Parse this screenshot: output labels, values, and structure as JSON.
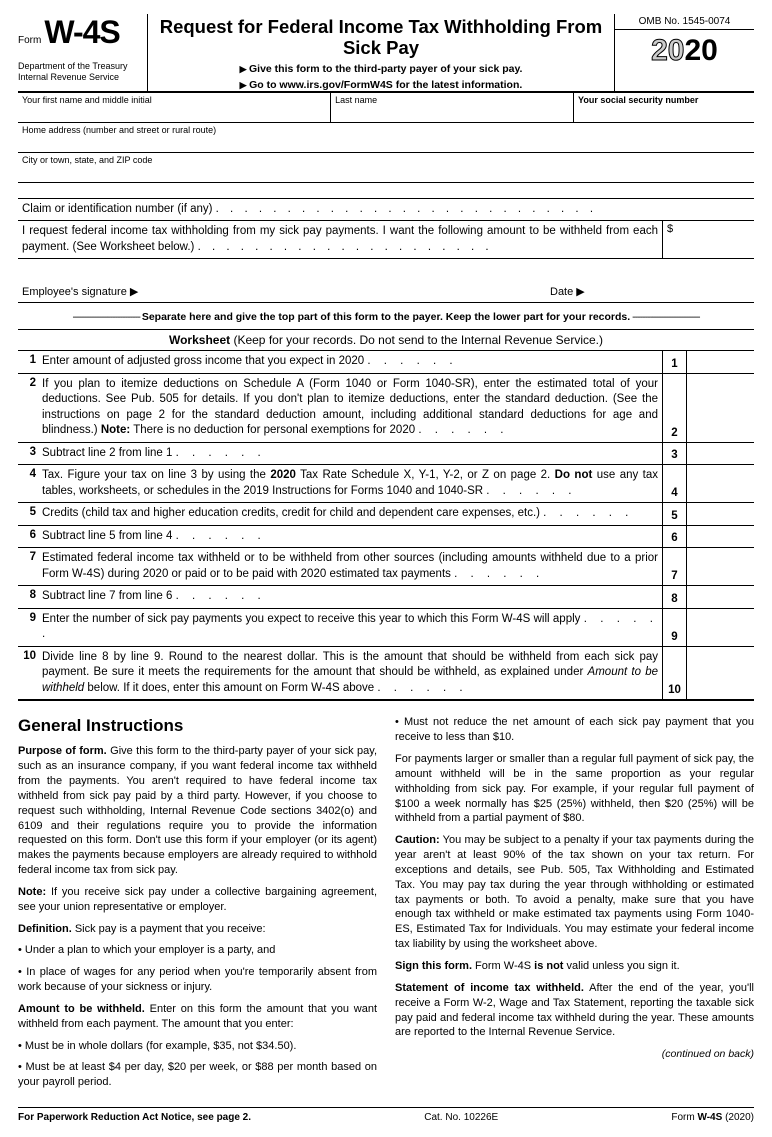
{
  "header": {
    "form_prefix": "Form",
    "form_code": "W-4S",
    "dept1": "Department of the Treasury",
    "dept2": "Internal Revenue Service",
    "title": "Request for Federal Income Tax Withholding From Sick Pay",
    "sub1": "Give this form to the third-party payer of your sick pay.",
    "sub2": "Go to www.irs.gov/FormW4S for the latest information.",
    "omb": "OMB No. 1545-0074",
    "year_grey": "20",
    "year_bold": "20"
  },
  "fields": {
    "first_name": "Your first name and middle initial",
    "last_name": "Last name",
    "ssn": "Your social security number",
    "address": "Home address (number and street or rural route)",
    "city": "City or town, state, and ZIP code",
    "claim": "Claim or identification number (if any)",
    "request": "I request federal income tax withholding from my sick pay payments. I want the following amount to be withheld from each payment. (See Worksheet below.)",
    "dollar": "$",
    "sig": "Employee's signature ▶",
    "date": "Date ▶"
  },
  "sep": "Separate here and give the top part of this form to the payer. Keep the lower part for your records.",
  "wks_title_b": "Worksheet",
  "wks_title_r": " (Keep for your records. Do not send to the Internal Revenue Service.)",
  "lines": [
    {
      "n": "1",
      "t": "Enter amount of adjusted gross income that you expect in 2020"
    },
    {
      "n": "2",
      "t": "If you plan to itemize deductions on Schedule A (Form 1040 or Form 1040-SR), enter the estimated total of your deductions. See Pub. 505 for details. If you don't plan to itemize deductions, enter the standard deduction. (See the instructions on page 2 for the standard deduction amount, including additional standard deductions for age and blindness.) Note: There is no deduction for personal exemptions for 2020"
    },
    {
      "n": "3",
      "t": "Subtract line 2 from line 1"
    },
    {
      "n": "4",
      "t": "Tax. Figure your tax on line 3 by using the 2020 Tax Rate Schedule X, Y-1, Y-2, or Z on page 2. Do not use any tax tables, worksheets, or schedules in the 2019 Instructions for Forms 1040 and 1040-SR"
    },
    {
      "n": "5",
      "t": "Credits (child tax and higher education credits, credit for child and dependent care expenses, etc.)"
    },
    {
      "n": "6",
      "t": "Subtract line 5 from line 4"
    },
    {
      "n": "7",
      "t": "Estimated federal income tax withheld or to be withheld from other sources (including amounts withheld due to a prior Form W-4S) during 2020 or paid or to be paid with 2020 estimated tax payments"
    },
    {
      "n": "8",
      "t": "Subtract line 7 from line 6"
    },
    {
      "n": "9",
      "t": "Enter the number of sick pay payments you expect to receive this year to which this Form W-4S will apply"
    },
    {
      "n": "10",
      "t": "Divide line 8 by line 9. Round to the nearest dollar. This is the amount that should be withheld from each sick pay payment. Be sure it meets the requirements for the amount that should be withheld, as explained under Amount to be withheld below. If it does, enter this amount on Form W-4S above"
    }
  ],
  "instr": {
    "h": "General Instructions",
    "left": [
      {
        "b": "Purpose of form.",
        "t": " Give this form to the third-party payer of your sick pay, such as an insurance company, if you want federal income tax withheld from the payments. You aren't required to have federal income tax withheld from sick pay paid by a third party. However, if you choose to request such withholding, Internal Revenue Code sections 3402(o) and 6109 and their regulations require you to provide the information requested on this form. Don't use this form if your employer (or its agent) makes the payments because employers are already required to withhold federal income tax from sick pay."
      },
      {
        "b": "Note:",
        "t": " If you receive sick pay under a collective bargaining agreement, see your union representative or employer."
      },
      {
        "b": "Definition.",
        "t": " Sick pay is a payment that you receive:"
      },
      {
        "bul": true,
        "t": "Under a plan to which your employer is a party, and"
      },
      {
        "bul": true,
        "t": "In place of wages for any period when you're temporarily absent from work because of your sickness or injury."
      },
      {
        "b": "Amount to be withheld.",
        "t": " Enter on this form the amount that you want withheld from each payment. The amount that you enter:"
      },
      {
        "bul": true,
        "t": "Must be in whole dollars (for example, $35, not $34.50)."
      },
      {
        "bul": true,
        "t": "Must be at least $4 per day, $20 per week, or $88 per month based on your payroll period."
      }
    ],
    "right": [
      {
        "bul": true,
        "t": "Must not reduce the net amount of each sick pay payment that you receive to less than $10."
      },
      {
        "t": "   For payments larger or smaller than a regular full payment of sick pay, the amount withheld will be in the same proportion as your regular withholding from sick pay. For example, if your regular full payment of $100 a week normally has $25 (25%) withheld, then $20 (25%) will be withheld from a partial payment of $80."
      },
      {
        "b": "Caution:",
        "t": " You may be subject to a penalty if your tax payments during the year aren't at least 90% of the tax shown on your tax return. For exceptions and details, see Pub. 505, Tax Withholding and Estimated Tax. You may pay tax during the year through withholding or estimated tax payments or both. To avoid a penalty, make sure that you have enough tax withheld or make estimated tax payments using Form 1040-ES, Estimated Tax for Individuals. You may estimate your federal income tax liability by using the worksheet above."
      },
      {
        "b": "Sign this form.",
        "t": " Form W-4S is not valid unless you sign it."
      },
      {
        "b": "Statement of income tax withheld.",
        "t": " After the end of the year, you'll receive a Form W-2, Wage and Tax Statement, reporting the taxable sick pay paid and federal income tax withheld during the year. These amounts are reported to the Internal Revenue Service."
      }
    ],
    "cont": "(continued on back)"
  },
  "footer": {
    "l": "For Paperwork Reduction Act Notice, see page 2.",
    "c": "Cat. No. 10226E",
    "r1": "Form ",
    "r2": "W-4S",
    "r3": " (2020)"
  }
}
